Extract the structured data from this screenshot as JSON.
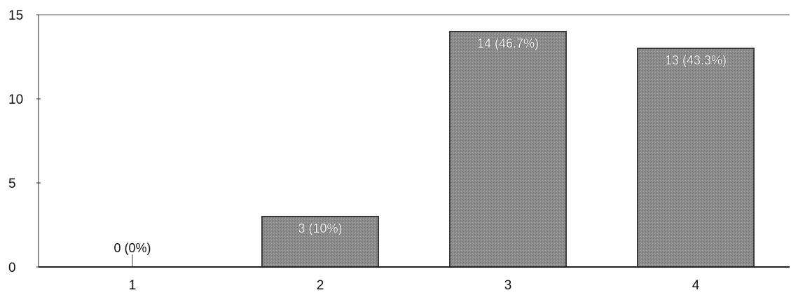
{
  "chart_data": {
    "type": "bar",
    "title": "",
    "xlabel": "",
    "ylabel": "",
    "categories": [
      "1",
      "2",
      "3",
      "4"
    ],
    "values": [
      0,
      3,
      14,
      13
    ],
    "data_labels": [
      "0 (0%)",
      "3 (10%)",
      "14 (46.7%)",
      "13 (43.3%)"
    ],
    "ylim": [
      0,
      15
    ],
    "yticks": [
      0,
      5,
      10,
      15
    ],
    "grid": false,
    "legend": "none",
    "bar_color": "#8c8c8c",
    "bar_edge_color": "#3a3a3a",
    "axis_color": "#222222"
  }
}
